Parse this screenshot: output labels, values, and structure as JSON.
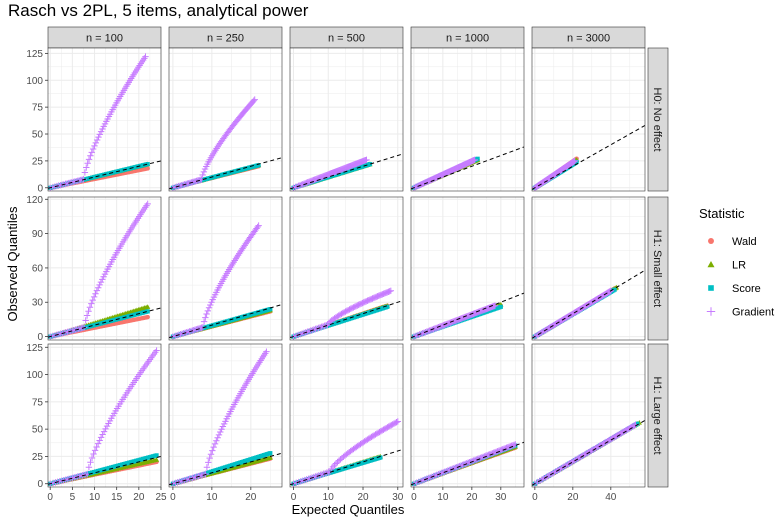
{
  "chart_data": {
    "type": "scatter",
    "subtype": "qq-plot-facet-grid",
    "title": "Rasch vs 2PL, 5 items, analytical power",
    "xlabel": "Expected Quantiles",
    "ylabel": "Observed Quantiles",
    "legend_title": "Statistic",
    "legend_position": "right",
    "grid": true,
    "series": [
      {
        "name": "Wald",
        "color": "#F8766D",
        "marker": "circle"
      },
      {
        "name": "LR",
        "color": "#7CAE00",
        "marker": "triangle"
      },
      {
        "name": "Score",
        "color": "#00BFC4",
        "marker": "square"
      },
      {
        "name": "Gradient",
        "color": "#C77CFF",
        "marker": "plus"
      }
    ],
    "reference_line": "y = x (dashed)",
    "columns": [
      {
        "label": "n = 100",
        "xlim": [
          -0.5,
          25
        ],
        "xticks": [
          0,
          5,
          10,
          15,
          20,
          25
        ]
      },
      {
        "label": "n = 250",
        "xlim": [
          -1,
          28
        ],
        "xticks": [
          0,
          10,
          20
        ]
      },
      {
        "label": "n = 500",
        "xlim": [
          -1,
          31.5
        ],
        "xticks": [
          0,
          10,
          20,
          30
        ]
      },
      {
        "label": "n = 1000",
        "xlim": [
          -1,
          38
        ],
        "xticks": [
          0,
          10,
          20,
          30
        ]
      },
      {
        "label": "n = 3000",
        "xlim": [
          -1.5,
          58
        ],
        "xticks": [
          0,
          20,
          40
        ]
      }
    ],
    "rows": [
      {
        "label": "H0: No effect",
        "ylim": [
          -3,
          130
        ],
        "yticks": [
          0,
          25,
          50,
          75,
          100,
          125
        ]
      },
      {
        "label": "H1: Small effect",
        "ylim": [
          -3,
          122
        ],
        "yticks": [
          0,
          30,
          60,
          90,
          120
        ]
      },
      {
        "label": "H1: Large effect",
        "ylim": [
          -3,
          128
        ],
        "yticks": [
          0,
          25,
          50,
          75,
          100,
          125
        ]
      }
    ],
    "panels": [
      [
        {
          "max": {
            "Wald": [
              22,
              18
            ],
            "LR": [
              22,
              22
            ],
            "Score": [
              22,
              22
            ],
            "Gradient": [
              21.5,
              122
            ]
          }
        },
        {
          "max": {
            "Wald": [
              22,
              20
            ],
            "LR": [
              22,
              21
            ],
            "Score": [
              22,
              21
            ],
            "Gradient": [
              21,
              82
            ]
          }
        },
        {
          "max": {
            "Wald": [
              22,
              22
            ],
            "LR": [
              22,
              22
            ],
            "Score": [
              22,
              22
            ],
            "Gradient": [
              21,
              26
            ]
          }
        },
        {
          "max": {
            "Wald": [
              22,
              26
            ],
            "LR": [
              22,
              26
            ],
            "Score": [
              22,
              27
            ],
            "Gradient": [
              21,
              26
            ]
          }
        },
        {
          "max": {
            "Wald": [
              22,
              27
            ],
            "LR": [
              22,
              26
            ],
            "Score": [
              22,
              24
            ],
            "Gradient": [
              21,
              25
            ]
          }
        }
      ],
      [
        {
          "max": {
            "Wald": [
              22,
              17
            ],
            "LR": [
              22,
              26
            ],
            "Score": [
              22,
              22
            ],
            "Gradient": [
              22,
              116
            ]
          }
        },
        {
          "max": {
            "Wald": [
              25,
              22
            ],
            "LR": [
              25,
              23
            ],
            "Score": [
              25,
              24
            ],
            "Gradient": [
              22,
              97
            ]
          }
        },
        {
          "max": {
            "Wald": [
              27,
              27
            ],
            "LR": [
              27,
              27
            ],
            "Score": [
              27,
              26
            ],
            "Gradient": [
              28,
              40
            ]
          }
        },
        {
          "max": {
            "Wald": [
              30,
              27
            ],
            "LR": [
              30,
              28
            ],
            "Score": [
              30,
              26
            ],
            "Gradient": [
              28,
              27
            ]
          }
        },
        {
          "max": {
            "Wald": [
              42,
              42
            ],
            "LR": [
              43,
              43
            ],
            "Score": [
              42,
              41
            ],
            "Gradient": [
              40,
              40
            ]
          }
        }
      ],
      [
        {
          "max": {
            "Wald": [
              24,
              20
            ],
            "LR": [
              24,
              22
            ],
            "Score": [
              24,
              26
            ],
            "Gradient": [
              24,
              122
            ]
          }
        },
        {
          "max": {
            "Wald": [
              25,
              23
            ],
            "LR": [
              25,
              24
            ],
            "Score": [
              25,
              28
            ],
            "Gradient": [
              24,
              121
            ]
          }
        },
        {
          "max": {
            "Wald": [
              25,
              24
            ],
            "LR": [
              25,
              25
            ],
            "Score": [
              25,
              24
            ],
            "Gradient": [
              30,
              57
            ]
          }
        },
        {
          "max": {
            "Wald": [
              35,
              33
            ],
            "LR": [
              35,
              34
            ],
            "Score": [
              35,
              35
            ],
            "Gradient": [
              35,
              36
            ]
          }
        },
        {
          "max": {
            "Wald": [
              54,
              55
            ],
            "LR": [
              55,
              56
            ],
            "Score": [
              54,
              55
            ],
            "Gradient": [
              53,
              54
            ]
          }
        }
      ]
    ]
  }
}
